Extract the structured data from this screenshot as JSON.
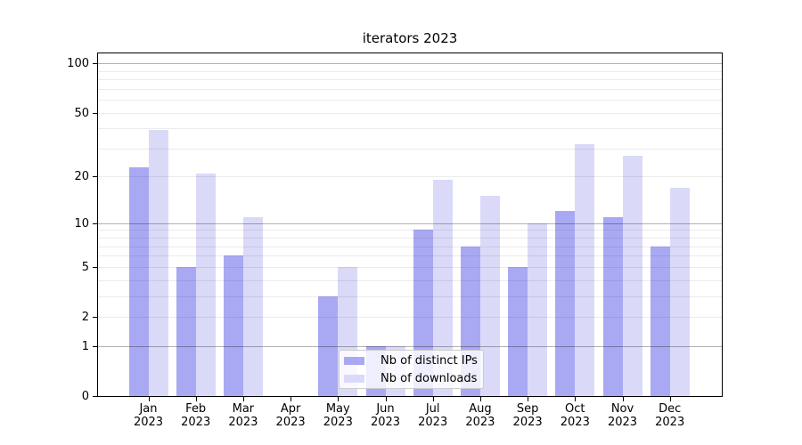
{
  "chart_data": {
    "type": "bar",
    "title": "iterators 2023",
    "x_months": [
      "Jan",
      "Feb",
      "Mar",
      "Apr",
      "May",
      "Jun",
      "Jul",
      "Aug",
      "Sep",
      "Oct",
      "Nov",
      "Dec"
    ],
    "x_year": "2023",
    "series": [
      {
        "name": "Nb of distinct IPs",
        "color": "#a9a9f3",
        "values": [
          23,
          5,
          6,
          0,
          3,
          1,
          9,
          7,
          5,
          12,
          11,
          7
        ]
      },
      {
        "name": "Nb of downloads",
        "color": "#dadaf8",
        "values": [
          39,
          21,
          11,
          0,
          5,
          1,
          19,
          15,
          10,
          32,
          27,
          17
        ]
      }
    ],
    "yticks": [
      0,
      1,
      2,
      5,
      10,
      20,
      50,
      100
    ],
    "minor_gridlines": [
      3,
      4,
      6,
      7,
      8,
      9,
      30,
      40,
      60,
      70,
      80,
      90
    ],
    "decade_gridlines": [
      1,
      10,
      100
    ],
    "ylim": [
      0,
      115
    ],
    "yscale": "log1p",
    "grid": true,
    "legend": {
      "position": "lower center",
      "entries": [
        "Nb of distinct IPs",
        "Nb of downloads"
      ]
    }
  }
}
